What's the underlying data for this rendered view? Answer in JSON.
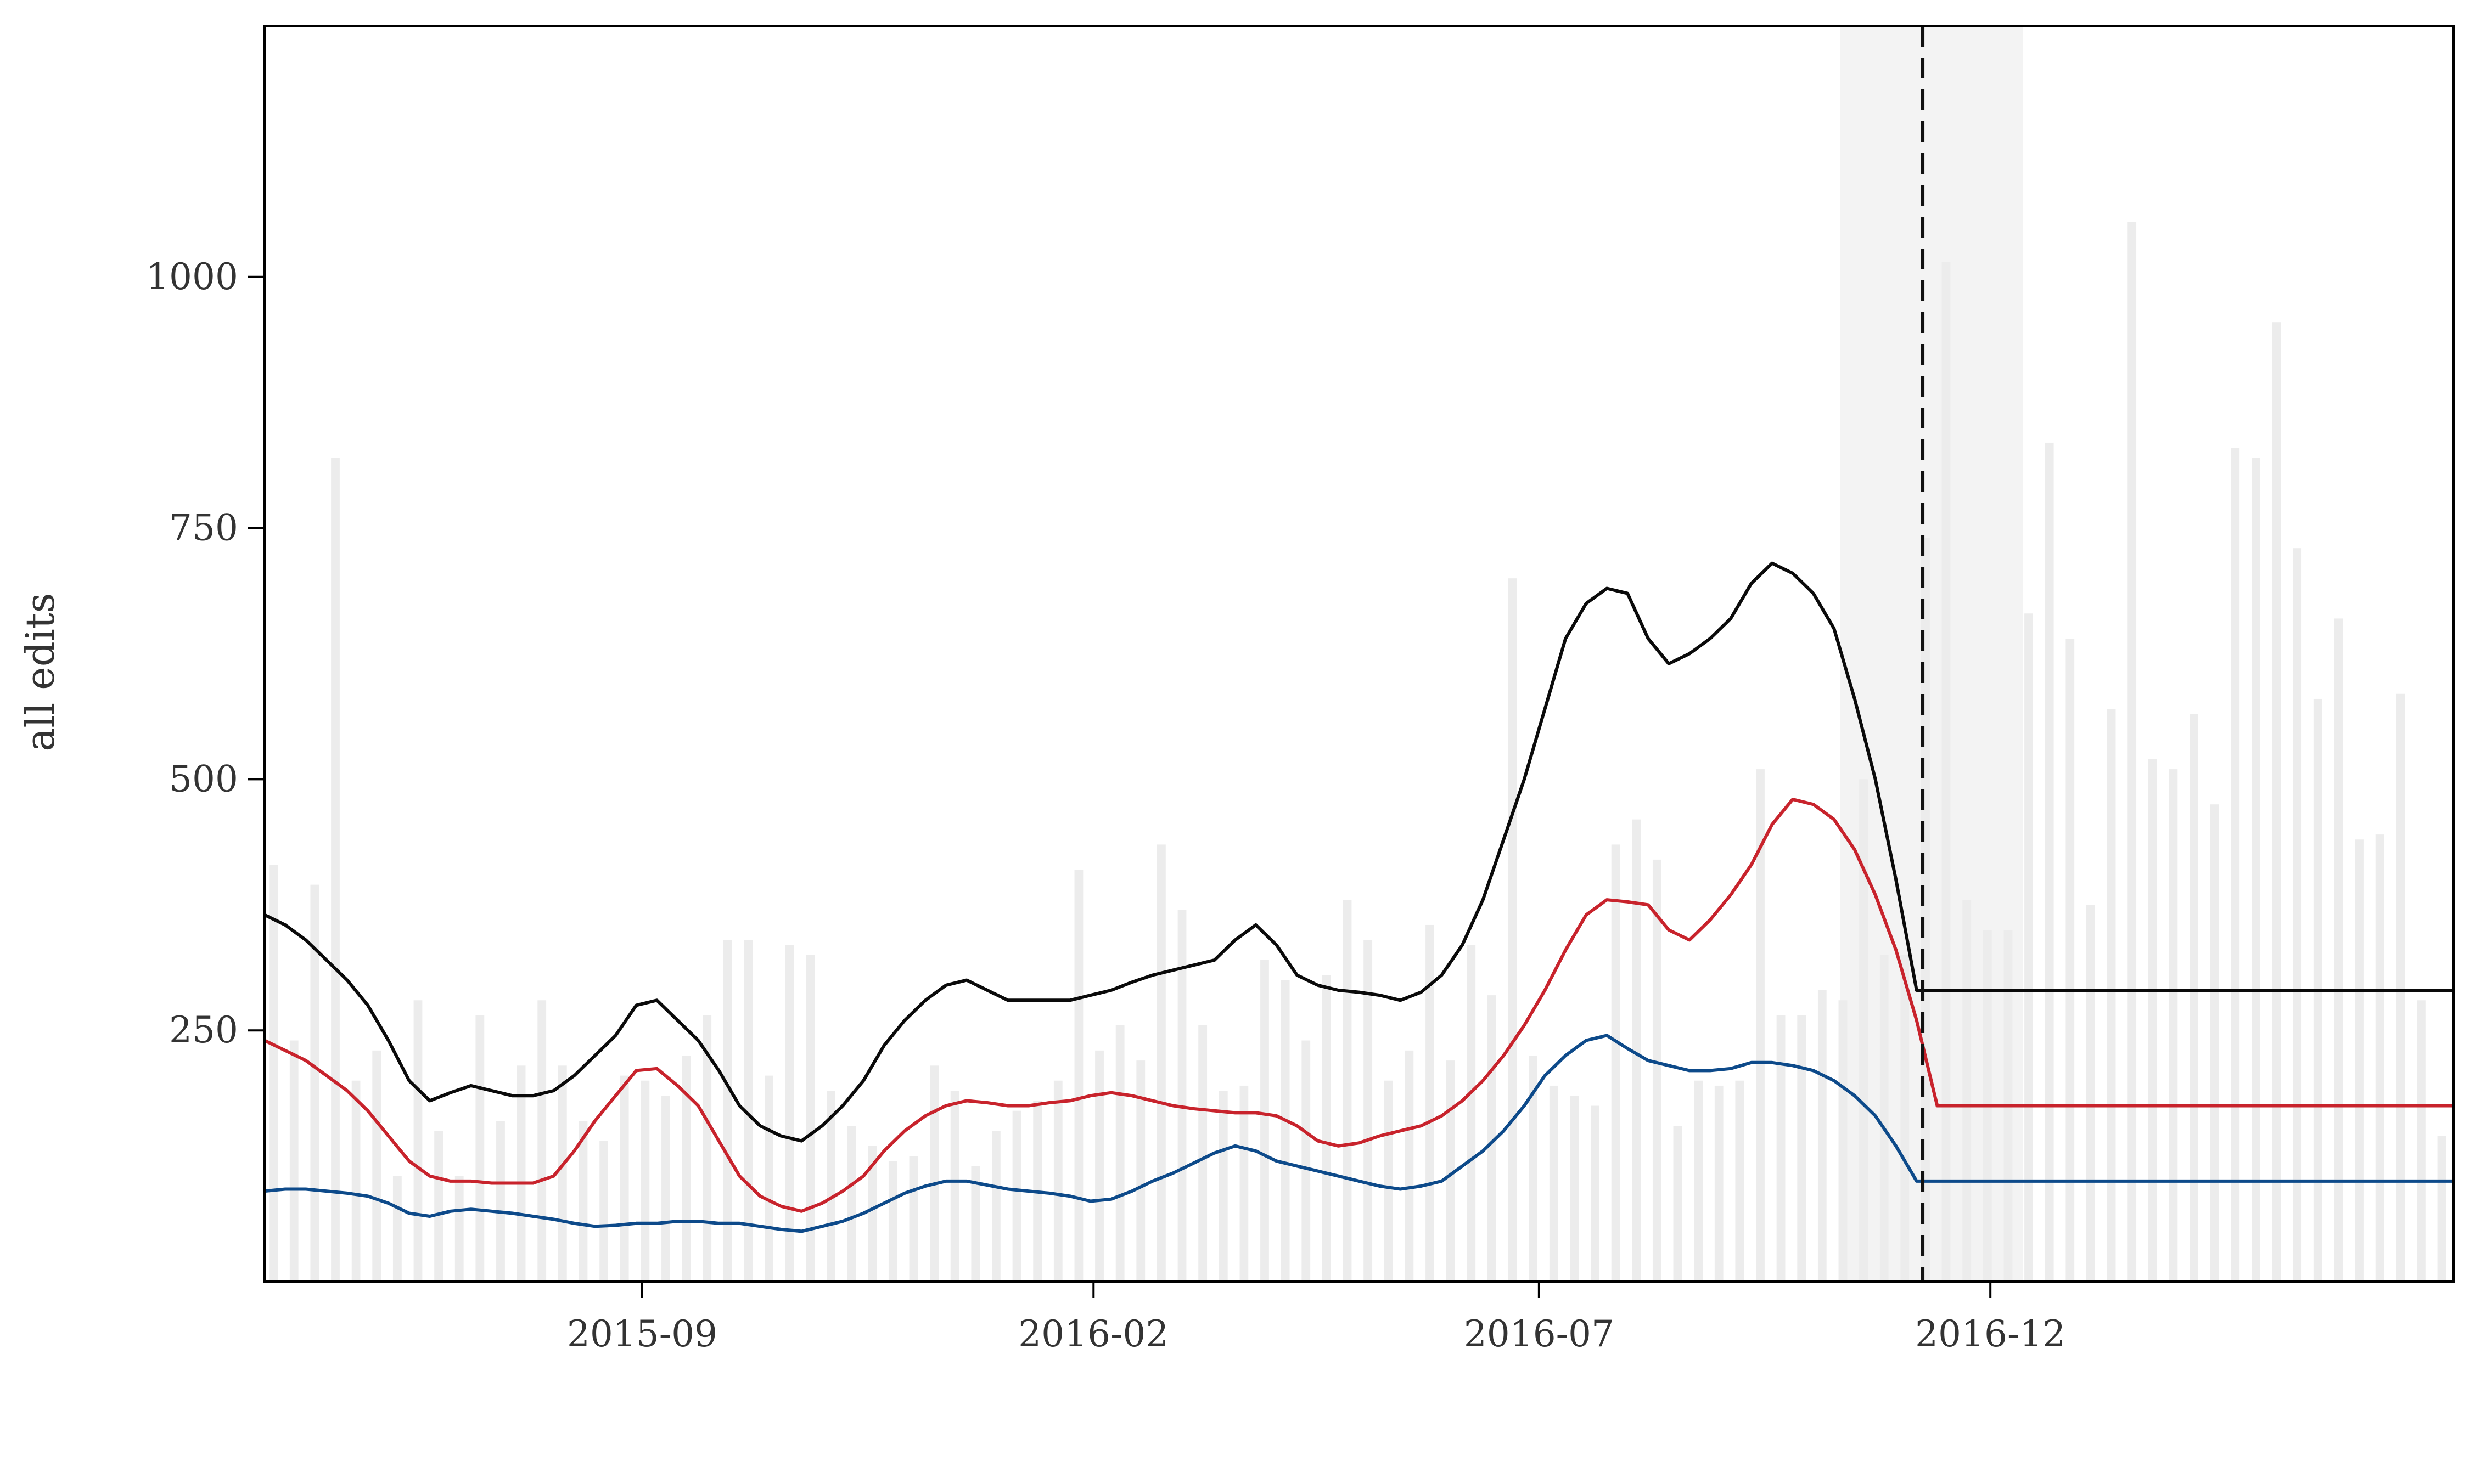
{
  "chart_data": {
    "type": "bar+line",
    "ylabel": "all edits",
    "xlabel": "",
    "title": "",
    "x_range": [
      "2015-04-26",
      "2017-05-07"
    ],
    "ylim": [
      0,
      1250
    ],
    "y_ticks": [
      250,
      500,
      750,
      1000
    ],
    "y_tick_labels": [
      "250",
      "500",
      "750",
      "1000"
    ],
    "x_ticks": [
      "2015-09-01",
      "2016-02-01",
      "2016-07-01",
      "2016-12-01"
    ],
    "x_tick_labels": [
      "2015-09",
      "2016-02",
      "2016-07",
      "2016-12"
    ],
    "grid": false,
    "event_line": {
      "date": "2016-11-08",
      "style": "dashed",
      "color": "#111111"
    },
    "event_window": {
      "start": "2016-10-11",
      "end": "2016-12-12",
      "color": "#f3f3f3"
    },
    "bars": {
      "color": "#ececec",
      "period": "weekly",
      "dates": [
        "2015-04-29",
        "2015-05-06",
        "2015-05-13",
        "2015-05-20",
        "2015-05-27",
        "2015-06-03",
        "2015-06-10",
        "2015-06-17",
        "2015-06-24",
        "2015-07-01",
        "2015-07-08",
        "2015-07-15",
        "2015-07-22",
        "2015-07-29",
        "2015-08-05",
        "2015-08-12",
        "2015-08-19",
        "2015-08-26",
        "2015-09-02",
        "2015-09-09",
        "2015-09-16",
        "2015-09-23",
        "2015-09-30",
        "2015-10-07",
        "2015-10-14",
        "2015-10-21",
        "2015-10-28",
        "2015-11-04",
        "2015-11-11",
        "2015-11-18",
        "2015-11-25",
        "2015-12-02",
        "2015-12-09",
        "2015-12-16",
        "2015-12-23",
        "2015-12-30",
        "2016-01-06",
        "2016-01-13",
        "2016-01-20",
        "2016-01-27",
        "2016-02-03",
        "2016-02-10",
        "2016-02-17",
        "2016-02-24",
        "2016-03-02",
        "2016-03-09",
        "2016-03-16",
        "2016-03-23",
        "2016-03-30",
        "2016-04-06",
        "2016-04-13",
        "2016-04-20",
        "2016-04-27",
        "2016-05-04",
        "2016-05-11",
        "2016-05-18",
        "2016-05-25",
        "2016-06-01",
        "2016-06-08",
        "2016-06-15",
        "2016-06-22",
        "2016-06-29",
        "2016-07-06",
        "2016-07-13",
        "2016-07-20",
        "2016-07-27",
        "2016-08-03",
        "2016-08-10",
        "2016-08-17",
        "2016-08-24",
        "2016-08-31",
        "2016-09-07",
        "2016-09-14",
        "2016-09-21",
        "2016-09-28",
        "2016-10-05",
        "2016-10-12",
        "2016-10-19",
        "2016-10-26",
        "2016-11-02",
        "2016-11-09",
        "2016-11-16",
        "2016-11-23",
        "2016-11-30",
        "2016-12-07",
        "2016-12-14",
        "2016-12-21",
        "2016-12-28",
        "2017-01-04",
        "2017-01-11",
        "2017-01-18",
        "2017-01-25",
        "2017-02-01",
        "2017-02-08",
        "2017-02-15",
        "2017-02-22",
        "2017-03-01",
        "2017-03-08",
        "2017-03-15",
        "2017-03-22",
        "2017-03-29",
        "2017-04-05",
        "2017-04-12",
        "2017-04-19",
        "2017-04-26",
        "2017-05-03"
      ],
      "values": [
        415,
        240,
        395,
        820,
        200,
        230,
        105,
        280,
        150,
        105,
        265,
        160,
        215,
        280,
        215,
        160,
        140,
        205,
        200,
        185,
        225,
        265,
        340,
        340,
        205,
        335,
        325,
        190,
        155,
        135,
        120,
        125,
        215,
        190,
        115,
        150,
        170,
        180,
        200,
        410,
        230,
        255,
        220,
        435,
        370,
        255,
        190,
        195,
        320,
        300,
        240,
        305,
        380,
        340,
        200,
        230,
        355,
        220,
        335,
        285,
        700,
        225,
        195,
        185,
        175,
        435,
        460,
        420,
        155,
        200,
        195,
        200,
        510,
        265,
        265,
        290,
        280,
        500,
        325,
        325,
        740,
        1015,
        380,
        350,
        350,
        665,
        835,
        640,
        375,
        570,
        1055,
        520,
        510,
        565,
        475,
        830,
        820,
        955,
        730,
        580,
        660,
        440,
        445,
        585,
        280,
        145
      ]
    },
    "series": [
      {
        "name": "",
        "color": "#0a0a0a",
        "x": [
          "2015-04-26",
          "2015-05-03",
          "2015-05-10",
          "2015-05-17",
          "2015-05-24",
          "2015-05-31",
          "2015-06-07",
          "2015-06-14",
          "2015-06-21",
          "2015-06-28",
          "2015-07-05",
          "2015-07-12",
          "2015-07-19",
          "2015-07-26",
          "2015-08-02",
          "2015-08-09",
          "2015-08-16",
          "2015-08-23",
          "2015-08-30",
          "2015-09-06",
          "2015-09-13",
          "2015-09-20",
          "2015-09-27",
          "2015-10-04",
          "2015-10-11",
          "2015-10-18",
          "2015-10-25",
          "2015-11-01",
          "2015-11-08",
          "2015-11-15",
          "2015-11-22",
          "2015-11-29",
          "2015-12-06",
          "2015-12-13",
          "2015-12-20",
          "2015-12-27",
          "2016-01-03",
          "2016-01-10",
          "2016-01-17",
          "2016-01-24",
          "2016-01-31",
          "2016-02-07",
          "2016-02-14",
          "2016-02-21",
          "2016-02-28",
          "2016-03-06",
          "2016-03-13",
          "2016-03-20",
          "2016-03-27",
          "2016-04-03",
          "2016-04-10",
          "2016-04-17",
          "2016-04-24",
          "2016-05-01",
          "2016-05-08",
          "2016-05-15",
          "2016-05-22",
          "2016-05-29",
          "2016-06-05",
          "2016-06-12",
          "2016-06-19",
          "2016-06-26",
          "2016-07-03",
          "2016-07-10",
          "2016-07-17",
          "2016-07-24",
          "2016-07-31",
          "2016-08-07",
          "2016-08-14",
          "2016-08-21",
          "2016-08-28",
          "2016-09-04",
          "2016-09-11",
          "2016-09-18",
          "2016-09-25",
          "2016-10-02",
          "2016-10-09",
          "2016-10-16",
          "2016-10-23",
          "2016-10-30",
          "2016-11-06",
          "2016-11-13",
          "2016-11-20",
          "2016-11-27",
          "2016-12-04",
          "2016-12-11",
          "2016-12-18",
          "2016-12-25",
          "2017-01-01",
          "2017-01-08",
          "2017-01-15",
          "2017-01-22",
          "2017-01-29",
          "2017-02-05",
          "2017-02-12",
          "2017-02-19",
          "2017-02-26",
          "2017-03-05",
          "2017-03-12",
          "2017-03-19",
          "2017-03-26",
          "2017-04-02",
          "2017-04-09",
          "2017-04-16",
          "2017-04-23",
          "2017-04-30",
          "2017-05-07"
        ],
        "values": [
          365,
          355,
          340,
          320,
          300,
          275,
          240,
          200,
          180,
          188,
          195,
          190,
          185,
          185,
          190,
          205,
          225,
          245,
          275,
          280,
          260,
          240,
          210,
          175,
          155,
          145,
          140,
          155,
          175,
          200,
          235,
          260,
          280,
          295,
          300,
          290,
          280,
          280,
          280,
          280,
          285,
          290,
          298,
          305,
          310,
          315,
          320,
          340,
          355,
          335,
          305,
          295,
          290,
          288,
          285,
          280,
          288,
          305,
          335,
          380,
          440,
          500,
          570,
          640,
          675,
          690,
          685,
          640,
          615,
          625,
          640,
          660,
          695,
          715,
          705,
          685,
          650,
          580,
          500,
          400,
          290,
          290,
          290,
          290,
          290,
          290,
          290,
          290,
          290,
          290,
          290,
          290,
          290,
          290,
          290,
          290,
          290,
          290,
          290,
          290,
          290,
          290,
          290,
          290,
          290,
          290,
          290
        ]
      },
      {
        "name": "",
        "color": "#c8232c",
        "values": [
          240,
          230,
          220,
          205,
          190,
          170,
          145,
          120,
          105,
          100,
          100,
          98,
          98,
          98,
          105,
          130,
          160,
          185,
          210,
          212,
          195,
          175,
          140,
          105,
          85,
          75,
          70,
          78,
          90,
          105,
          130,
          150,
          165,
          175,
          180,
          178,
          175,
          175,
          178,
          180,
          185,
          188,
          185,
          180,
          175,
          172,
          170,
          168,
          168,
          165,
          155,
          140,
          135,
          138,
          145,
          150,
          155,
          165,
          180,
          200,
          225,
          255,
          290,
          330,
          365,
          380,
          378,
          375,
          350,
          340,
          360,
          385,
          415,
          455,
          480,
          475,
          460,
          430,
          385,
          330,
          260,
          175,
          175,
          175,
          175,
          175,
          175,
          175,
          175,
          175,
          175,
          175,
          175,
          175,
          175,
          175,
          175,
          175,
          175,
          175,
          175,
          175,
          175,
          175,
          175,
          175,
          175
        ]
      },
      {
        "name": "",
        "color": "#0d4a8a",
        "values": [
          90,
          92,
          92,
          90,
          88,
          85,
          78,
          68,
          65,
          70,
          72,
          70,
          68,
          65,
          62,
          58,
          55,
          56,
          58,
          58,
          60,
          60,
          58,
          58,
          55,
          52,
          50,
          55,
          60,
          68,
          78,
          88,
          95,
          100,
          100,
          96,
          92,
          90,
          88,
          85,
          80,
          82,
          90,
          100,
          108,
          118,
          128,
          135,
          130,
          120,
          115,
          110,
          105,
          100,
          95,
          92,
          95,
          100,
          115,
          130,
          150,
          175,
          205,
          225,
          240,
          245,
          232,
          220,
          215,
          210,
          210,
          212,
          218,
          218,
          215,
          210,
          200,
          185,
          165,
          135,
          100,
          100,
          100,
          100,
          100,
          100,
          100,
          100,
          100,
          100,
          100,
          100,
          100,
          100,
          100,
          100,
          100,
          100,
          100,
          100,
          100,
          100,
          100,
          100,
          100,
          100,
          100
        ]
      }
    ]
  }
}
